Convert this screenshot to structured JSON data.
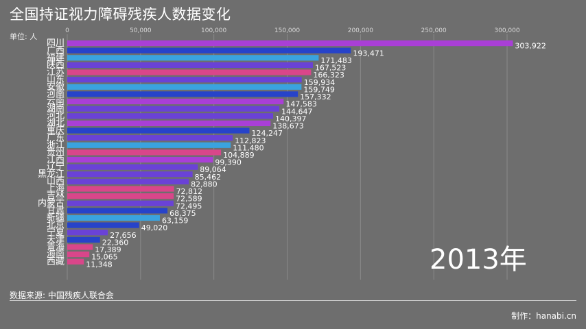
{
  "title": "全国持证视力障碍残疾人数据变化",
  "unit_label": "单位: 人",
  "year_label": "2013年",
  "source": "数据来源: 中国残疾人联合会",
  "credit": "制作：hanabi.cn",
  "colors": {
    "background": "#6e6e6e",
    "purple": "#a93fd6",
    "blue": "#2743c9",
    "sky": "#3aa3df",
    "pink": "#d9468a",
    "violet": "#6a42d6",
    "grid": "#8a8a8a"
  },
  "chart_data": {
    "type": "bar",
    "orientation": "horizontal",
    "xlim": [
      0,
      325000
    ],
    "xticks": [
      0,
      50000,
      100000,
      150000,
      200000,
      250000,
      300000
    ],
    "xtick_labels": [
      "0",
      "50,000",
      "100,000",
      "150,000",
      "200,000",
      "250,000",
      "300,000"
    ],
    "grid": true,
    "categories": [
      "四川",
      "广西",
      "福建",
      "陕西",
      "江苏",
      "山东",
      "安徽",
      "河南",
      "云南",
      "湖南",
      "河北",
      "湖北",
      "重庆",
      "广东",
      "浙江",
      "贵州",
      "江西",
      "辽宁",
      "黑龙江",
      "山西",
      "上海",
      "吉林",
      "内蒙古",
      "甘肃",
      "新疆",
      "北京",
      "宁夏",
      "天津",
      "青海",
      "海南",
      "西藏"
    ],
    "values": [
      303922,
      193471,
      171483,
      167523,
      166323,
      159934,
      159749,
      157332,
      147583,
      144647,
      140397,
      138673,
      124247,
      112823,
      111480,
      104889,
      99390,
      89064,
      85462,
      82880,
      72812,
      72589,
      72495,
      68375,
      63159,
      49020,
      27656,
      22360,
      17389,
      15065,
      11348
    ],
    "value_labels": [
      "303,922",
      "193,471",
      "171,483",
      "167,523",
      "166,323",
      "159,934",
      "159,749",
      "157,332",
      "147,583",
      "144,647",
      "140,397",
      "138,673",
      "124,247",
      "112,823",
      "111,480",
      "104,889",
      "99,390",
      "89,064",
      "85,462",
      "82,880",
      "72,812",
      "72,589",
      "72,495",
      "68,375",
      "63,159",
      "49,020",
      "27,656",
      "22,360",
      "17,389",
      "15,065",
      "11,348"
    ],
    "bar_colors": [
      "purple",
      "blue",
      "sky",
      "violet",
      "pink",
      "violet",
      "sky",
      "blue",
      "purple",
      "violet",
      "violet",
      "purple",
      "blue",
      "violet",
      "sky",
      "pink",
      "purple",
      "violet",
      "violet",
      "violet",
      "pink",
      "pink",
      "violet",
      "blue",
      "sky",
      "blue",
      "violet",
      "blue",
      "pink",
      "pink",
      "pink"
    ]
  }
}
